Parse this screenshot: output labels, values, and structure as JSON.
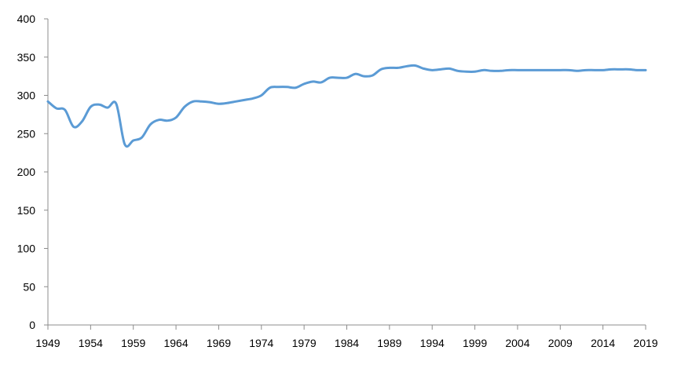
{
  "chart_data": {
    "type": "line",
    "title": "",
    "xlabel": "",
    "ylabel": "",
    "xlim": [
      1949,
      2019
    ],
    "ylim": [
      0,
      400
    ],
    "yticks": [
      0,
      50,
      100,
      150,
      200,
      250,
      300,
      350,
      400
    ],
    "xticks": [
      1949,
      1954,
      1959,
      1964,
      1969,
      1974,
      1979,
      1984,
      1989,
      1994,
      1999,
      2004,
      2009,
      2014,
      2019
    ],
    "grid": false,
    "legend": "none",
    "colors": {
      "series": "#5b9bd5",
      "axis": "#8c8c8c",
      "text": "#000000"
    },
    "series": [
      {
        "x": [
          1949,
          1950,
          1951,
          1952,
          1953,
          1954,
          1955,
          1956,
          1957,
          1958,
          1959,
          1960,
          1961,
          1962,
          1963,
          1964,
          1965,
          1966,
          1967,
          1968,
          1969,
          1970,
          1971,
          1972,
          1973,
          1974,
          1975,
          1976,
          1977,
          1978,
          1979,
          1980,
          1981,
          1982,
          1983,
          1984,
          1985,
          1986,
          1987,
          1988,
          1989,
          1990,
          1991,
          1992,
          1993,
          1994,
          1995,
          1996,
          1997,
          1998,
          1999,
          2000,
          2001,
          2002,
          2003,
          2004,
          2005,
          2006,
          2007,
          2008,
          2009,
          2010,
          2011,
          2012,
          2013,
          2014,
          2015,
          2016,
          2017,
          2018,
          2019
        ],
        "values": [
          292,
          283,
          281,
          259,
          266,
          285,
          288,
          284,
          289,
          236,
          241,
          245,
          262,
          268,
          267,
          271,
          285,
          292,
          292,
          291,
          289,
          290,
          292,
          294,
          296,
          300,
          310,
          311,
          311,
          310,
          315,
          318,
          317,
          323,
          323,
          323,
          328,
          325,
          326,
          334,
          336,
          336,
          338,
          339,
          335,
          333,
          334,
          335,
          332,
          331,
          331,
          333,
          332,
          332,
          333,
          333,
          333,
          333,
          333,
          333,
          333,
          333,
          332,
          333,
          333,
          333,
          334,
          334,
          334,
          333,
          333
        ]
      }
    ]
  }
}
